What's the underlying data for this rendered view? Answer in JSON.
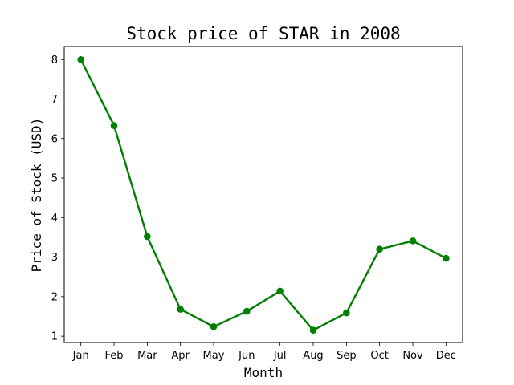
{
  "chart_data": {
    "type": "line",
    "title": "Stock price of STAR in 2008",
    "xlabel": "Month",
    "ylabel": "Price of Stock (USD)",
    "categories": [
      "Jan",
      "Feb",
      "Mar",
      "Apr",
      "May",
      "Jun",
      "Jul",
      "Aug",
      "Sep",
      "Oct",
      "Nov",
      "Dec"
    ],
    "series": [
      {
        "values": [
          8.0,
          6.33,
          3.52,
          1.68,
          1.24,
          1.63,
          2.14,
          1.15,
          1.59,
          3.2,
          3.41,
          2.97
        ],
        "color": "#008000",
        "marker": "circle"
      }
    ],
    "yticks": [
      1,
      2,
      3,
      4,
      5,
      6,
      7,
      8
    ],
    "ylim": [
      0.84,
      8.33
    ],
    "grid": false,
    "legend": "none"
  }
}
